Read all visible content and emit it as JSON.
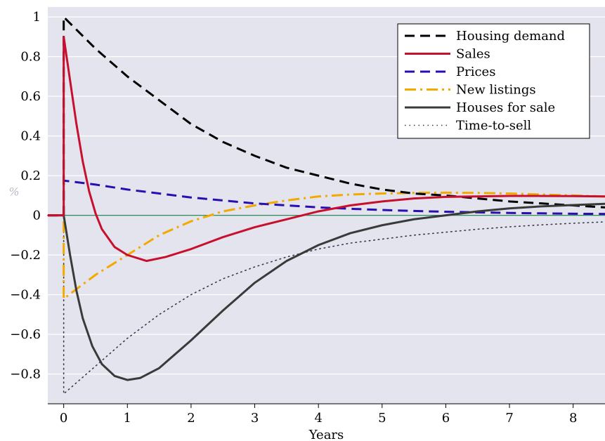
{
  "chart_data": {
    "type": "line",
    "title": "",
    "xlabel": "Years",
    "ylabel": "%",
    "xlim": [
      -0.25,
      8.5
    ],
    "ylim": [
      -0.95,
      1.05
    ],
    "x_ticks": [
      0,
      1,
      2,
      3,
      4,
      5,
      6,
      7,
      8
    ],
    "x_tick_labels": [
      "0",
      "1",
      "2",
      "3",
      "4",
      "5",
      "6",
      "7",
      "8"
    ],
    "y_ticks": [
      -0.8,
      -0.6,
      -0.4,
      -0.2,
      0,
      0.2,
      0.4,
      0.6,
      0.8,
      1
    ],
    "y_tick_labels": [
      "−0.8",
      "−0.6",
      "−0.4",
      "−0.2",
      "0",
      "0.2",
      "0.4",
      "0.6",
      "0.8",
      "1"
    ],
    "grid": "horizontal",
    "legend_position": "top-right",
    "zero_line_color": "#2e8b57",
    "background_color": "#e3e4ee",
    "series": [
      {
        "name": "Housing demand",
        "color": "#000000",
        "style": "dashed",
        "x": [
          -0.25,
          0,
          0,
          0.5,
          1,
          1.5,
          2,
          2.5,
          3,
          3.5,
          4,
          4.5,
          5,
          5.5,
          6,
          6.5,
          7,
          7.5,
          8,
          8.5
        ],
        "y": [
          0,
          0,
          1.0,
          0.84,
          0.7,
          0.58,
          0.46,
          0.37,
          0.3,
          0.24,
          0.2,
          0.16,
          0.13,
          0.11,
          0.1,
          0.085,
          0.07,
          0.06,
          0.05,
          0.04
        ]
      },
      {
        "name": "Sales",
        "color": "#c8102e",
        "style": "solid",
        "x": [
          -0.25,
          0,
          0,
          0.1,
          0.2,
          0.3,
          0.4,
          0.5,
          0.6,
          0.8,
          1,
          1.3,
          1.6,
          2,
          2.5,
          3,
          3.5,
          4,
          4.5,
          5,
          5.5,
          6,
          7,
          8,
          8.5
        ],
        "y": [
          0,
          0,
          0.9,
          0.68,
          0.46,
          0.27,
          0.12,
          0.01,
          -0.07,
          -0.16,
          -0.2,
          -0.23,
          -0.21,
          -0.17,
          -0.11,
          -0.06,
          -0.02,
          0.02,
          0.05,
          0.07,
          0.085,
          0.093,
          0.098,
          0.097,
          0.095
        ]
      },
      {
        "name": "Prices",
        "color": "#2a0fb0",
        "style": "dashed",
        "x": [
          -0.25,
          0,
          0,
          0.5,
          1,
          1.5,
          2,
          2.5,
          3,
          3.5,
          4,
          4.5,
          5,
          5.5,
          6,
          6.5,
          7,
          7.5,
          8,
          8.5
        ],
        "y": [
          0,
          0,
          0.175,
          0.155,
          0.13,
          0.11,
          0.09,
          0.075,
          0.06,
          0.05,
          0.04,
          0.033,
          0.027,
          0.022,
          0.018,
          0.015,
          0.012,
          0.01,
          0.008,
          0.007
        ]
      },
      {
        "name": "New listings",
        "color": "#f2a900",
        "style": "dashdot",
        "x": [
          -0.25,
          0,
          0,
          0.25,
          0.5,
          1,
          1.5,
          2,
          2.5,
          3,
          3.5,
          4,
          4.5,
          5,
          5.5,
          6,
          6.5,
          7,
          7.5,
          8,
          8.5
        ],
        "y": [
          0,
          0,
          -0.42,
          -0.36,
          -0.3,
          -0.2,
          -0.1,
          -0.03,
          0.02,
          0.05,
          0.075,
          0.095,
          0.105,
          0.11,
          0.113,
          0.114,
          0.113,
          0.11,
          0.105,
          0.1,
          0.095
        ]
      },
      {
        "name": "Houses for sale",
        "color": "#3a3a3a",
        "style": "solid",
        "x": [
          -0.25,
          0,
          0.1,
          0.2,
          0.3,
          0.45,
          0.6,
          0.8,
          1,
          1.2,
          1.5,
          2,
          2.5,
          3,
          3.5,
          4,
          4.5,
          5,
          5.5,
          6,
          6.5,
          7,
          7.5,
          8,
          8.5
        ],
        "y": [
          0,
          0,
          -0.2,
          -0.38,
          -0.52,
          -0.66,
          -0.75,
          -0.81,
          -0.83,
          -0.82,
          -0.77,
          -0.63,
          -0.48,
          -0.34,
          -0.23,
          -0.15,
          -0.09,
          -0.05,
          -0.02,
          0.0,
          0.02,
          0.035,
          0.045,
          0.052,
          0.058
        ]
      },
      {
        "name": "Time-to-sell",
        "color": "#3a3a4a",
        "style": "dotted",
        "x": [
          -0.25,
          0,
          0,
          0.5,
          1,
          1.5,
          2,
          2.5,
          3,
          3.5,
          4,
          4.5,
          5,
          5.5,
          6,
          6.5,
          7,
          7.5,
          8,
          8.5
        ],
        "y": [
          0,
          0,
          -0.9,
          -0.76,
          -0.62,
          -0.5,
          -0.4,
          -0.32,
          -0.26,
          -0.21,
          -0.17,
          -0.14,
          -0.12,
          -0.1,
          -0.085,
          -0.07,
          -0.058,
          -0.048,
          -0.04,
          -0.033
        ]
      }
    ]
  }
}
